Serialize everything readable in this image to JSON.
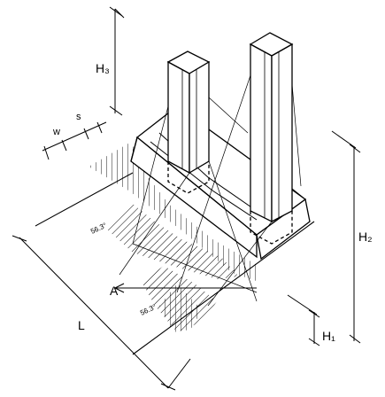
{
  "labels": {
    "h3": "H₃",
    "h2": "H₂",
    "h1": "H₁",
    "l": "L",
    "a": "A",
    "w": "w",
    "s": "s",
    "angle_left": "56.3°",
    "angle_bottom": "56.3°"
  }
}
